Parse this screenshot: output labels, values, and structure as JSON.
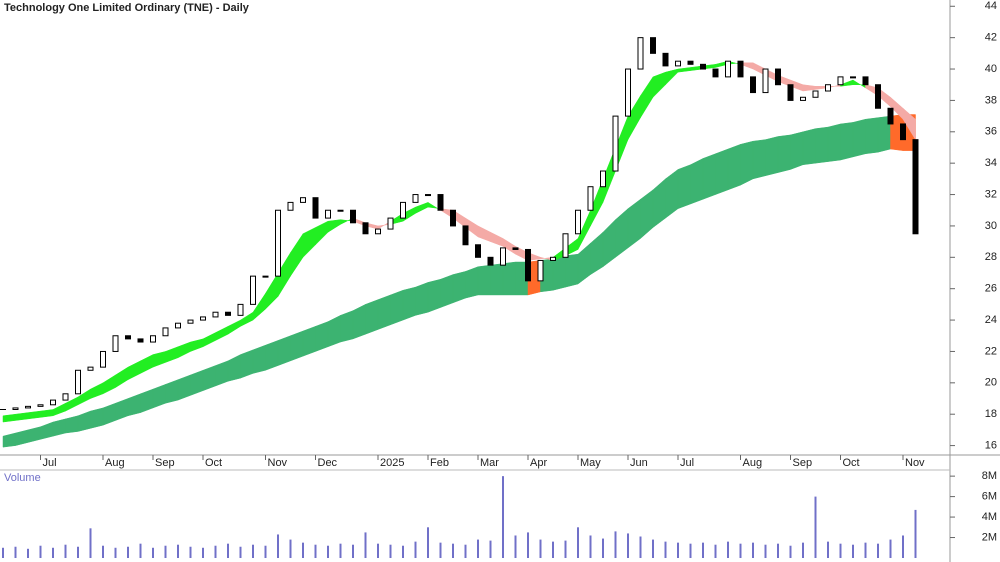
{
  "chart_data": [
    {
      "type": "candlestick",
      "title": "Technology One Limited Ordinary (TNE) - Daily",
      "categories": [
        null,
        null,
        null,
        "Jul",
        null,
        null,
        null,
        null,
        "Aug",
        null,
        null,
        null,
        "Sep",
        null,
        null,
        null,
        "Oct",
        null,
        null,
        null,
        null,
        "Nov",
        null,
        null,
        null,
        "Dec",
        null,
        null,
        null,
        null,
        "2025",
        null,
        null,
        null,
        "Feb",
        null,
        null,
        null,
        "Mar",
        null,
        null,
        null,
        "Apr",
        null,
        null,
        null,
        "May",
        null,
        null,
        null,
        "Jun",
        null,
        null,
        null,
        "Jul",
        null,
        null,
        null,
        null,
        "Aug",
        null,
        null,
        null,
        "Sep",
        null,
        null,
        null,
        "Oct",
        null,
        null,
        null,
        null,
        "Nov",
        null
      ],
      "values": [
        18.3,
        18.4,
        18.5,
        18.6,
        18.9,
        19.3,
        20.8,
        21.0,
        22.0,
        23.0,
        22.8,
        22.6,
        23.0,
        23.5,
        23.8,
        24.0,
        24.2,
        24.5,
        24.3,
        25.0,
        26.8,
        26.8,
        31.0,
        31.5,
        31.8,
        30.5,
        31.0,
        31.0,
        30.2,
        29.5,
        29.8,
        30.5,
        31.5,
        32.0,
        32.0,
        31.0,
        30.0,
        28.8,
        28.0,
        27.5,
        28.6,
        28.5,
        26.5,
        27.8,
        28.0,
        29.5,
        31.0,
        32.5,
        33.5,
        37.0,
        40.0,
        42.0,
        41.0,
        40.2,
        40.5,
        40.3,
        40.0,
        39.5,
        40.5,
        39.5,
        38.5,
        40.0,
        39.0,
        38.0,
        38.2,
        38.6,
        39.0,
        39.5,
        39.5,
        39.0,
        37.5,
        36.5,
        35.5,
        29.5
      ],
      "short_band": {
        "color_up": "#22ee22",
        "color_down": "#f4aaa6",
        "fast": [
          17.9,
          18.0,
          18.1,
          18.2,
          18.3,
          18.7,
          19.1,
          19.6,
          20.0,
          20.5,
          21.0,
          21.4,
          21.8,
          22.0,
          22.3,
          22.6,
          22.8,
          23.2,
          23.6,
          24.0,
          24.5,
          25.7,
          27.0,
          28.3,
          29.5,
          29.9,
          30.3,
          30.4,
          30.3,
          30.0,
          29.8,
          30.3,
          30.8,
          31.2,
          31.5,
          31.0,
          30.5,
          29.9,
          29.3,
          29.0,
          28.7,
          28.2,
          27.8,
          27.9,
          28.0,
          28.6,
          29.2,
          31.0,
          33.0,
          35.0,
          37.0,
          38.3,
          39.5,
          39.8,
          40.0,
          40.1,
          40.2,
          40.3,
          40.5,
          40.3,
          40.0,
          39.6,
          39.2,
          38.9,
          38.6,
          38.7,
          38.8,
          39.0,
          39.3,
          38.8,
          38.3,
          37.6,
          36.8,
          35.5
        ],
        "slow": [
          17.5,
          17.6,
          17.7,
          17.8,
          17.9,
          18.2,
          18.6,
          19.0,
          19.3,
          19.7,
          20.2,
          20.6,
          21.0,
          21.3,
          21.6,
          22.0,
          22.3,
          22.7,
          23.1,
          23.6,
          24.0,
          24.7,
          25.5,
          26.8,
          28.0,
          28.8,
          29.6,
          30.1,
          30.5,
          30.2,
          30.0,
          30.1,
          30.3,
          30.8,
          31.2,
          31.1,
          31.0,
          30.5,
          30.0,
          29.6,
          29.2,
          28.7,
          28.3,
          28.0,
          27.8,
          28.1,
          28.5,
          30.0,
          31.5,
          33.5,
          35.5,
          36.9,
          38.2,
          39.0,
          39.8,
          39.9,
          40.0,
          40.1,
          40.3,
          40.4,
          40.4,
          40.0,
          39.6,
          39.3,
          39.0,
          38.9,
          38.9,
          38.9,
          39.0,
          39.0,
          38.8,
          38.2,
          37.5,
          36.8
        ]
      },
      "long_band": {
        "color": "#3cb371",
        "color_below": "#ff6a2a",
        "upper": [
          16.6,
          16.8,
          17.0,
          17.2,
          17.5,
          17.7,
          17.9,
          18.2,
          18.4,
          18.7,
          19.0,
          19.3,
          19.6,
          19.9,
          20.2,
          20.5,
          20.8,
          21.1,
          21.4,
          21.8,
          22.1,
          22.4,
          22.7,
          23.0,
          23.3,
          23.6,
          23.9,
          24.3,
          24.6,
          25.0,
          25.3,
          25.6,
          25.9,
          26.1,
          26.4,
          26.6,
          26.9,
          27.1,
          27.4,
          27.5,
          27.6,
          27.7,
          27.7,
          27.8,
          27.9,
          28.1,
          28.2,
          28.9,
          29.6,
          30.4,
          31.1,
          31.7,
          32.3,
          33.0,
          33.6,
          33.9,
          34.3,
          34.6,
          34.9,
          35.2,
          35.4,
          35.5,
          35.7,
          35.8,
          36.0,
          36.2,
          36.3,
          36.5,
          36.6,
          36.8,
          36.9,
          37.0,
          37.1,
          37.1
        ],
        "lower": [
          15.9,
          16.0,
          16.2,
          16.4,
          16.6,
          16.8,
          16.9,
          17.1,
          17.3,
          17.6,
          17.9,
          18.1,
          18.4,
          18.7,
          18.9,
          19.2,
          19.5,
          19.8,
          20.1,
          20.3,
          20.6,
          20.8,
          21.1,
          21.4,
          21.7,
          22.0,
          22.3,
          22.6,
          22.8,
          23.1,
          23.4,
          23.7,
          24.0,
          24.3,
          24.5,
          24.8,
          25.1,
          25.4,
          25.6,
          25.6,
          25.6,
          25.6,
          25.6,
          25.8,
          25.9,
          26.1,
          26.3,
          26.9,
          27.4,
          28.0,
          28.6,
          29.2,
          29.9,
          30.5,
          31.1,
          31.4,
          31.7,
          32.0,
          32.3,
          32.6,
          33.0,
          33.2,
          33.4,
          33.6,
          33.9,
          34.0,
          34.1,
          34.2,
          34.4,
          34.6,
          34.7,
          34.9,
          34.8,
          34.8
        ]
      },
      "ylim": [
        15.4,
        44.4
      ],
      "yticks": [
        16,
        18,
        20,
        22,
        24,
        26,
        28,
        30,
        32,
        34,
        36,
        38,
        40,
        42,
        44
      ]
    },
    {
      "type": "bar",
      "title": "Volume",
      "color": "#7070c8",
      "values": [
        1000000,
        1100000,
        900000,
        1200000,
        1000000,
        1300000,
        1100000,
        2900000,
        1200000,
        1000000,
        1100000,
        1400000,
        1000000,
        1200000,
        1300000,
        1100000,
        1000000,
        1200000,
        1400000,
        1100000,
        1300000,
        1200000,
        2300000,
        1800000,
        1500000,
        1300000,
        1200000,
        1400000,
        1300000,
        2500000,
        1400000,
        1300000,
        1200000,
        1600000,
        3000000,
        1500000,
        1400000,
        1300000,
        1800000,
        1700000,
        8000000,
        2200000,
        2500000,
        1800000,
        1600000,
        1700000,
        3000000,
        2200000,
        1900000,
        2600000,
        2400000,
        2100000,
        1800000,
        1600000,
        1500000,
        1400000,
        1500000,
        1300000,
        1600000,
        1400000,
        1500000,
        1300000,
        1400000,
        1200000,
        1500000,
        6000000,
        1600000,
        1400000,
        1300000,
        1500000,
        1400000,
        1800000,
        2200000,
        4700000
      ],
      "ylim": [
        0,
        8600000
      ],
      "yticks": [
        {
          "value": 2000000,
          "label": "2M"
        },
        {
          "value": 4000000,
          "label": "4M"
        },
        {
          "value": 6000000,
          "label": "6M"
        },
        {
          "value": 8000000,
          "label": "8M"
        }
      ]
    }
  ]
}
